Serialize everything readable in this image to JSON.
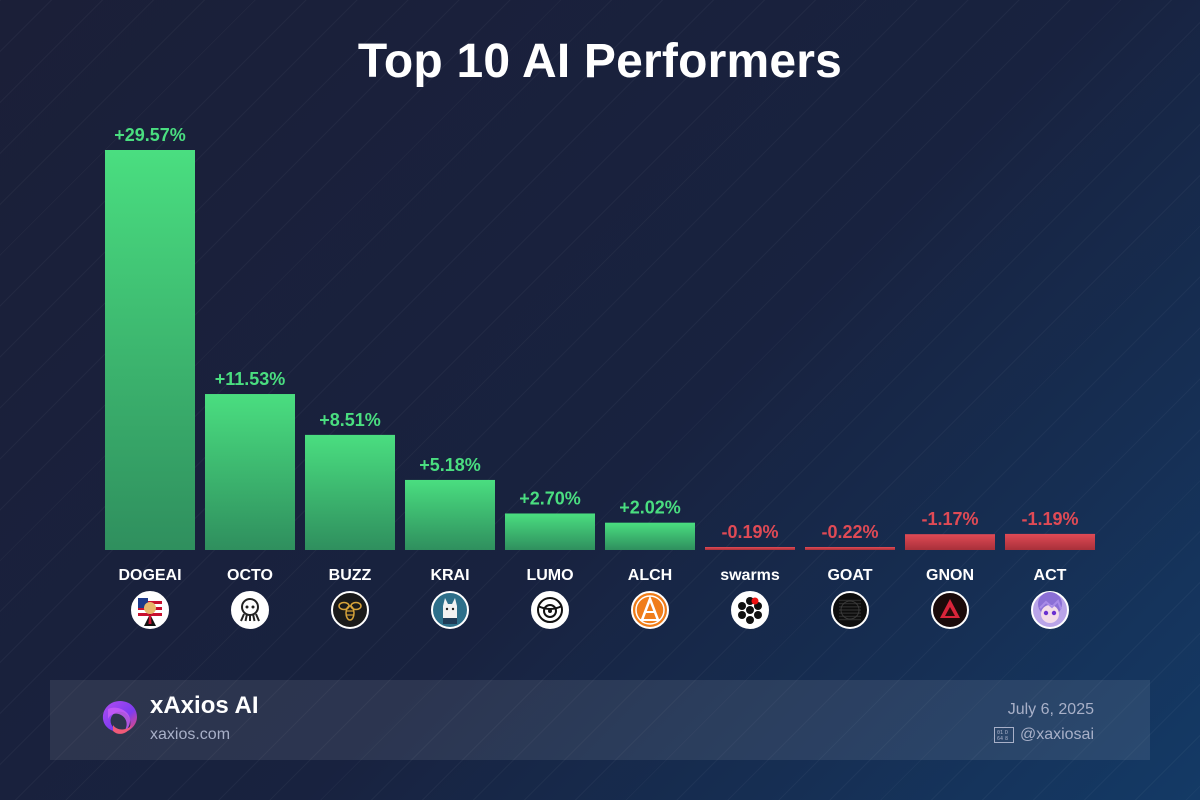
{
  "chart_data": {
    "type": "bar",
    "title": "Top 10 AI Performers",
    "categories": [
      "DOGEAI",
      "OCTO",
      "BUZZ",
      "KRAI",
      "LUMO",
      "ALCH",
      "swarms",
      "GOAT",
      "GNON",
      "ACT"
    ],
    "values": [
      29.57,
      11.53,
      8.51,
      5.18,
      2.7,
      2.02,
      -0.19,
      -0.22,
      -1.17,
      -1.19
    ],
    "labels": [
      "+29.57%",
      "+11.53%",
      "+8.51%",
      "+5.18%",
      "+2.70%",
      "+2.02%",
      "-0.19%",
      "-0.22%",
      "-1.17%",
      "-1.19%"
    ],
    "icons": [
      "doge-flag-avatar-icon",
      "octopus-logo-icon",
      "bee-logo-icon",
      "wolf-avatar-icon",
      "owl-logo-icon",
      "alchemy-a-logo-icon",
      "swarm-dots-logo-icon",
      "goat-logo-icon",
      "gnon-triangle-logo-icon",
      "anime-avatar-icon"
    ],
    "xlabel": "",
    "ylabel": "",
    "ylim": [
      -1.19,
      29.57
    ],
    "grid": false,
    "legend": "none",
    "colors": {
      "positive": "#4ade80",
      "positive_dark": "#2f8f5e",
      "negative": "#e04a55",
      "negative_dark": "#a8303a"
    }
  },
  "footer": {
    "brand_name": "xAxios AI",
    "brand_url": "xaxios.com",
    "date": "July 6, 2025",
    "handle": "@xaxiosai",
    "handle_icon": "x-handle-icon",
    "logo_icon": "xaxios-logo-icon"
  }
}
